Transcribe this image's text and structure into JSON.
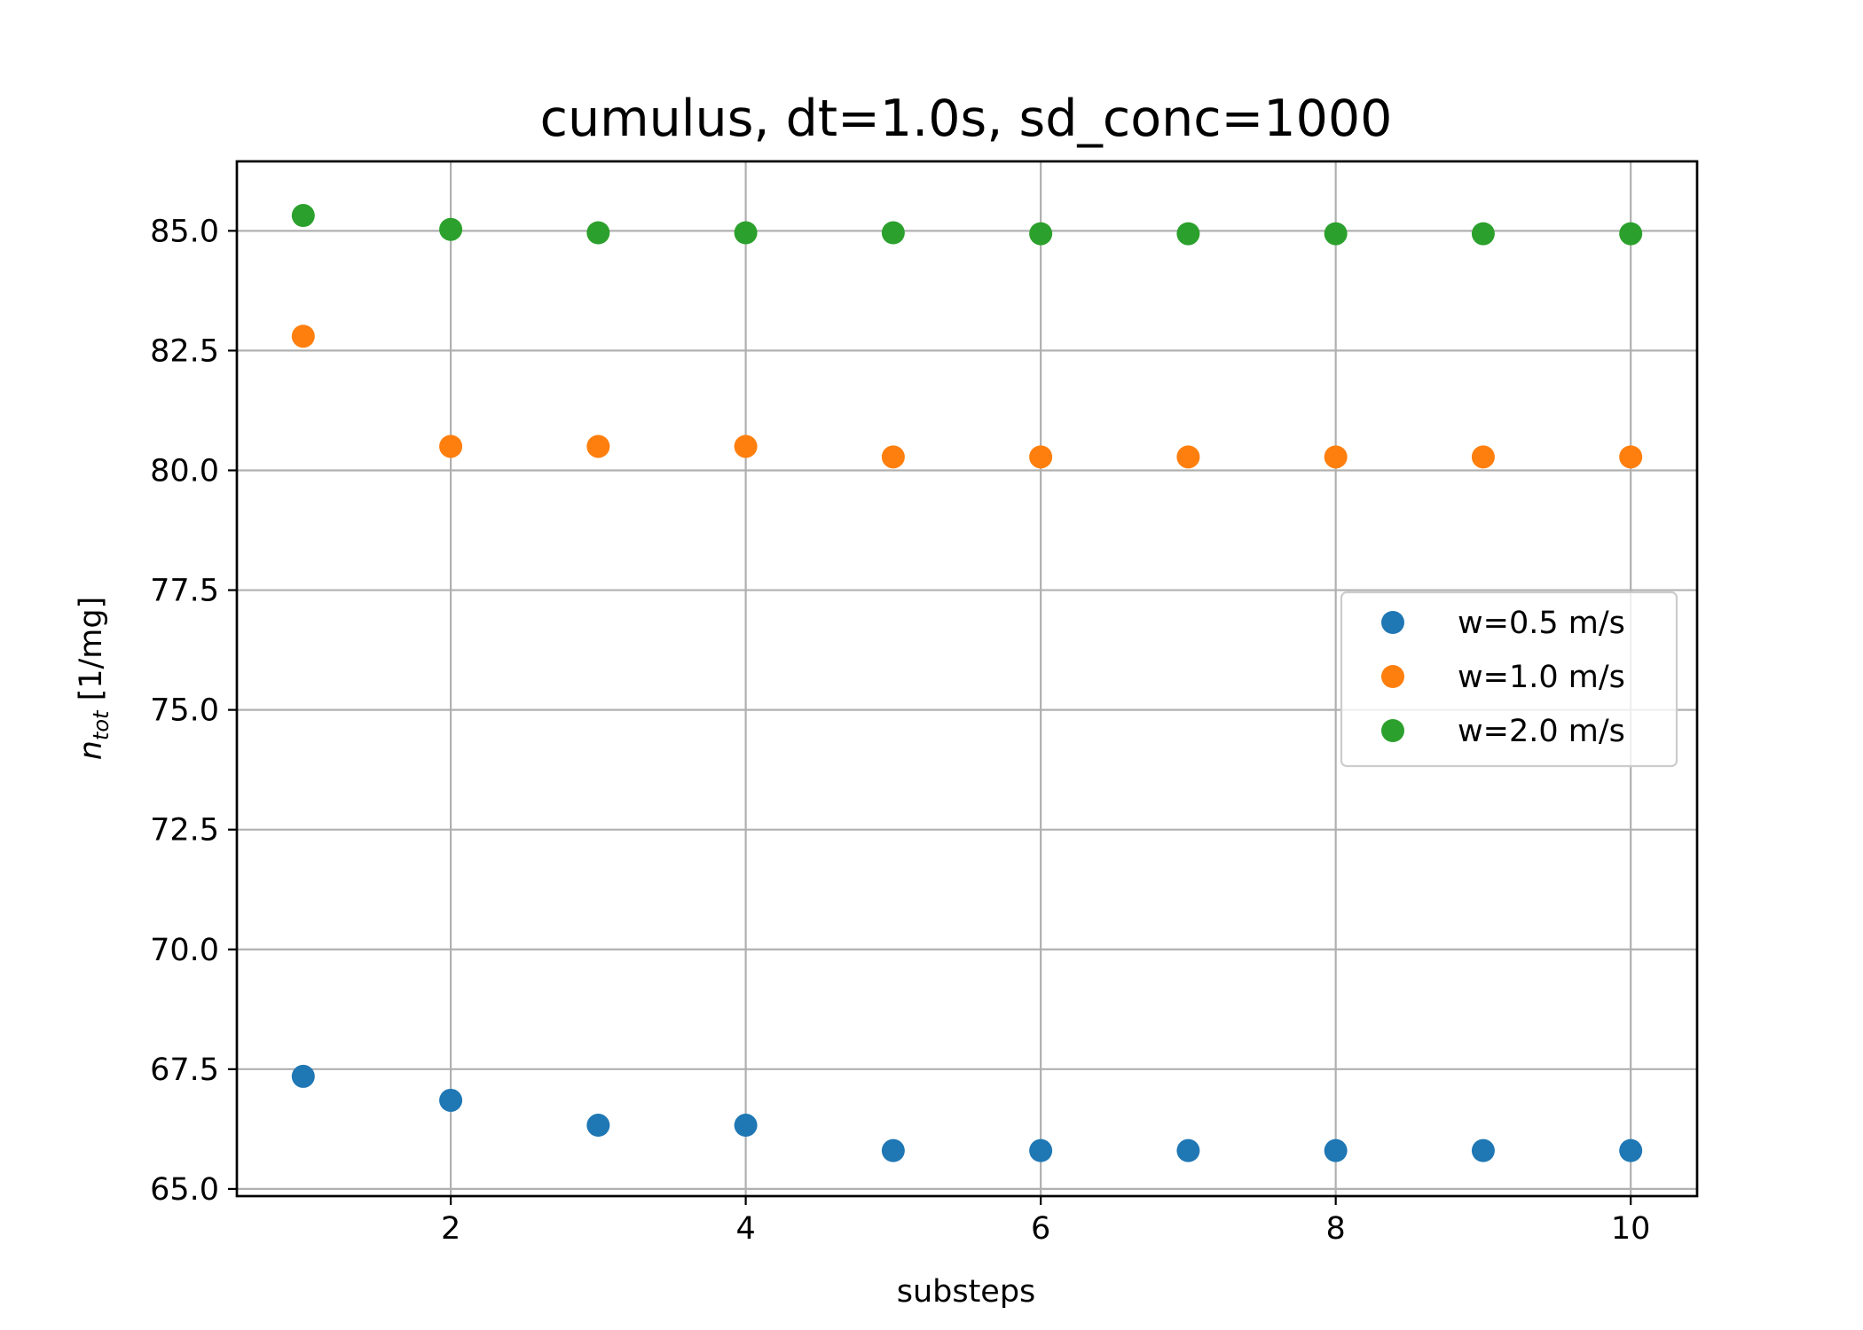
{
  "chart_data": {
    "type": "scatter",
    "title": "cumulus, dt=1.0s, sd_conc=1000",
    "xlabel": "substeps",
    "ylabel_main": "n",
    "ylabel_sub": "tot",
    "ylabel_unit": " [1/mg]",
    "xlim": [
      0.55,
      10.45
    ],
    "ylim": [
      64.85,
      86.45
    ],
    "xticks": [
      2,
      4,
      6,
      8,
      10
    ],
    "xtick_labels": [
      "2",
      "4",
      "6",
      "8",
      "10"
    ],
    "yticks": [
      65.0,
      67.5,
      70.0,
      72.5,
      75.0,
      77.5,
      80.0,
      82.5,
      85.0
    ],
    "ytick_labels": [
      "65.0",
      "67.5",
      "70.0",
      "72.5",
      "75.0",
      "77.5",
      "80.0",
      "82.5",
      "85.0"
    ],
    "grid": true,
    "legend_position": "center-right",
    "x": [
      1,
      2,
      3,
      4,
      5,
      6,
      7,
      8,
      9,
      10
    ],
    "series": [
      {
        "name": "w=0.5 m/s",
        "color": "#1f77b4",
        "values": [
          67.35,
          66.85,
          66.33,
          66.33,
          65.8,
          65.8,
          65.8,
          65.8,
          65.8,
          65.8
        ]
      },
      {
        "name": "w=1.0 m/s",
        "color": "#ff7f0e",
        "values": [
          82.8,
          80.5,
          80.5,
          80.5,
          80.28,
          80.28,
          80.28,
          80.28,
          80.28,
          80.28
        ]
      },
      {
        "name": "w=2.0 m/s",
        "color": "#2ca02c",
        "values": [
          85.32,
          85.03,
          84.96,
          84.96,
          84.96,
          84.94,
          84.94,
          84.94,
          84.94,
          84.94
        ]
      }
    ]
  }
}
